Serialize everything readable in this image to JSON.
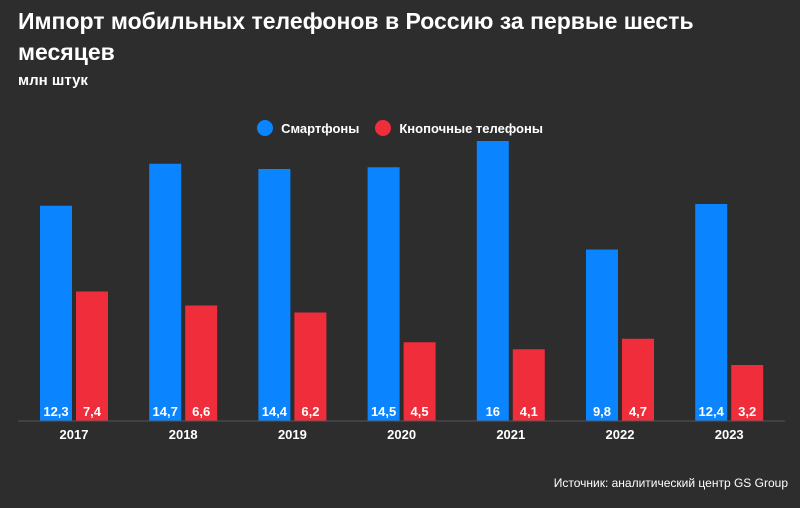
{
  "chart_data": {
    "type": "bar",
    "title": "Импорт мобильных телефонов в Россию за первые шесть месяцев",
    "subtitle": "млн штук",
    "categories": [
      "2017",
      "2018",
      "2019",
      "2020",
      "2021",
      "2022",
      "2023"
    ],
    "series": [
      {
        "name": "Смартфоны",
        "color": "#0a84ff",
        "values": [
          12.3,
          14.7,
          14.4,
          14.5,
          16,
          9.8,
          12.4
        ],
        "labels": [
          "12,3",
          "14,7",
          "14,4",
          "14,5",
          "16",
          "9,8",
          "12,4"
        ]
      },
      {
        "name": "Кнопочные телефоны",
        "color": "#ef2d3b",
        "values": [
          7.4,
          6.6,
          6.2,
          4.5,
          4.1,
          4.7,
          3.2
        ],
        "labels": [
          "7,4",
          "6,6",
          "6,2",
          "4,5",
          "4,1",
          "4,7",
          "3,2"
        ]
      }
    ],
    "ylim": [
      0,
      16
    ],
    "grid": false,
    "legend": "top-center",
    "source": "Источник: аналитический центр GS Group"
  }
}
